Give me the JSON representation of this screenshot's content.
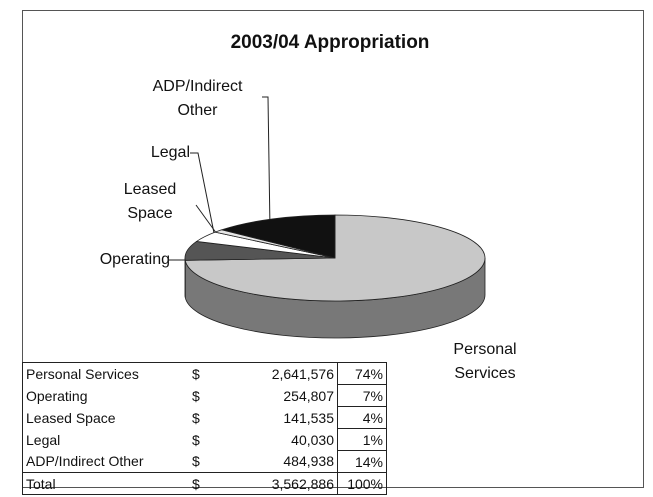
{
  "chart_data": {
    "type": "pie",
    "title": "2003/04 Appropriation",
    "categories": [
      "Personal Services",
      "Operating",
      "Leased Space",
      "Legal",
      "ADP/Indirect Other"
    ],
    "values": [
      2641576,
      254807,
      141535,
      40030,
      484938
    ],
    "colors": [
      "#c8c8c8",
      "#555555",
      "#ffffff",
      "#e6e6e6",
      "#111111"
    ]
  },
  "table": {
    "rows": [
      [
        "Personal Services",
        "$",
        "2,641,576",
        "74%"
      ],
      [
        "Operating",
        "$",
        "254,807",
        "7%"
      ],
      [
        "Leased Space",
        "$",
        "141,535",
        "4%"
      ],
      [
        "Legal",
        "$",
        "40,030",
        "1%"
      ],
      [
        "ADP/Indirect Other",
        "$",
        "484,938",
        "14%"
      ],
      [
        "Total",
        "$",
        "3,562,886",
        "100%"
      ]
    ]
  }
}
